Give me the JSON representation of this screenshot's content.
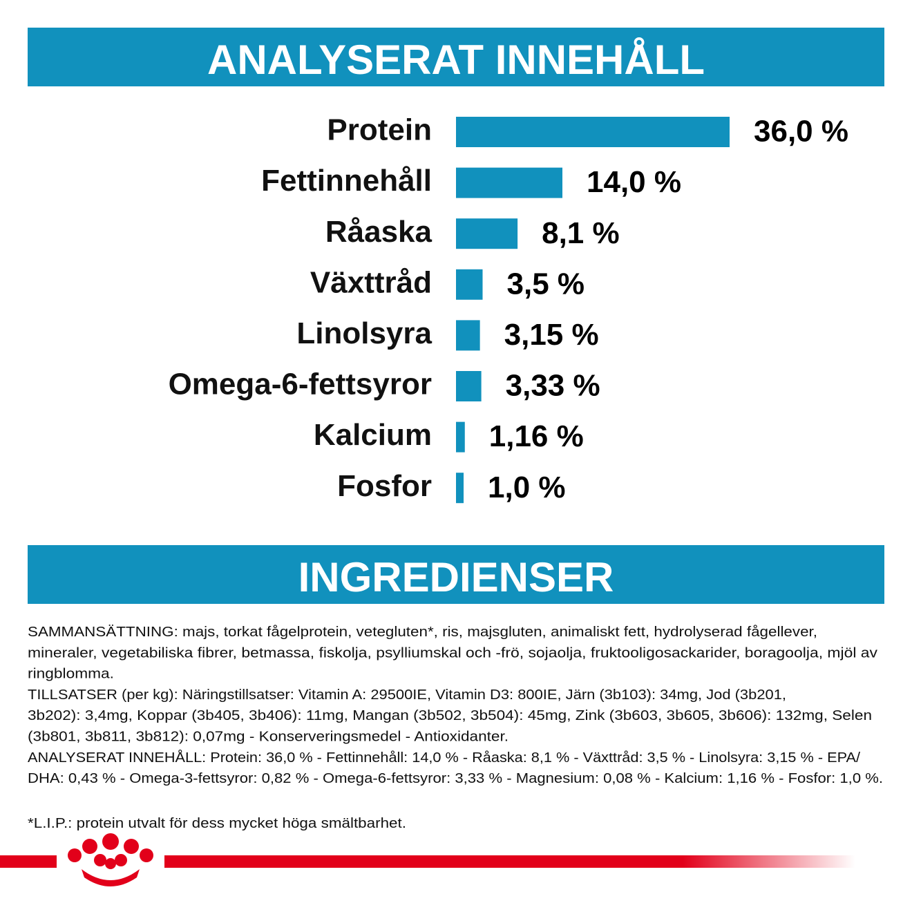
{
  "heading": "ANALYSERAT INNEHÅLL",
  "chart_data": {
    "type": "bar",
    "orientation": "horizontal",
    "color": "#1191bd",
    "categories": [
      "Protein",
      "Fettinnehåll",
      "Råaska",
      "Växttråd",
      "Linolsyra",
      "Omega-6-fettsyror",
      "Kalcium",
      "Fosfor"
    ],
    "values": [
      36.0,
      14.0,
      8.1,
      3.5,
      3.15,
      3.33,
      1.16,
      1.0
    ],
    "value_labels": [
      "36,0 %",
      "14,0 %",
      "8,1 %",
      "3,5 %",
      "3,15 %",
      "3,33 %",
      "1,16 %",
      "1,0 %"
    ]
  },
  "ingredients": {
    "title": "INGREDIENSER",
    "lines": [
      "SAMMANSÄTTNING: majs, torkat fågelprotein, vetegluten*, ris, majsgluten, animaliskt fett, hydrolyserad fågellever,",
      "mineraler, vegetabiliska fibrer, betmassa, fiskolja, psylliumskal och -frö, sojaolja, fruktooligosackarider, boragoolja, mjöl av",
      "ringblomma.",
      "TILLSATSER (per kg): Näringstillsatser: Vitamin A: 29500IE, Vitamin D3: 800IE, Järn (3b103): 34mg, Jod (3b201,",
      "3b202): 3,4mg, Koppar (3b405, 3b406): 11mg, Mangan (3b502, 3b504): 45mg, Zink (3b603, 3b605, 3b606): 132mg, Selen",
      "(3b801, 3b811, 3b812): 0,07mg - Konserveringsmedel - Antioxidanter.",
      "ANALYSERAT INNEHÅLL: Protein: 36,0 % - Fettinnehåll: 14,0 % - Råaska: 8,1 % - Växttråd: 3,5 % - Linolsyra: 3,15 % - EPA/",
      "DHA: 0,43 % - Omega-3-fettsyror: 0,82 % - Omega-6-fettsyror: 3,33 % - Magnesium: 0,08 % - Kalcium: 1,16 % - Fosfor: 1,0 %."
    ],
    "footnote": "*L.I.P.: protein utvalt för dess mycket höga smältbarhet."
  }
}
